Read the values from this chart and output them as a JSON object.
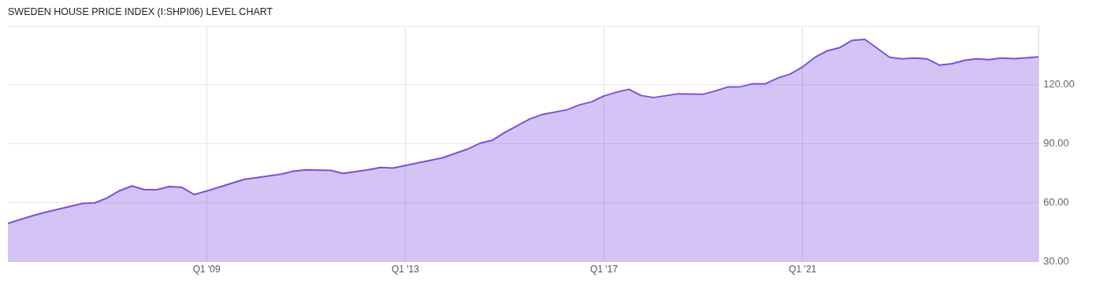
{
  "chart_data": {
    "type": "area",
    "title": "SWEDEN HOUSE PRICE INDEX (I:SHPI06) LEVEL CHART",
    "x": [
      "2005-01",
      "2005-07",
      "2005-10",
      "2006-07",
      "2006-10",
      "2007-01",
      "2007-04",
      "2007-07",
      "2007-10",
      "2008-01",
      "2008-04",
      "2008-07",
      "2008-10",
      "2009-01",
      "2009-10",
      "2010-07",
      "2010-10",
      "2011-01",
      "2011-07",
      "2011-10",
      "2012-04",
      "2012-07",
      "2012-10",
      "2013-01",
      "2013-10",
      "2014-04",
      "2014-07",
      "2014-10",
      "2015-01",
      "2015-07",
      "2015-10",
      "2016-04",
      "2016-07",
      "2016-10",
      "2017-01",
      "2017-04",
      "2017-07",
      "2017-10",
      "2018-01",
      "2018-07",
      "2019-01",
      "2019-04",
      "2019-07",
      "2019-10",
      "2020-01",
      "2020-04",
      "2020-07",
      "2020-10",
      "2021-01",
      "2021-04",
      "2021-07",
      "2021-10",
      "2022-01",
      "2022-04",
      "2022-07",
      "2022-10",
      "2023-01",
      "2023-04",
      "2023-07",
      "2023-10",
      "2024-01",
      "2024-04",
      "2024-07",
      "2024-10",
      "2025-01",
      "2025-04",
      "2025-07",
      "2025-10"
    ],
    "series": [
      {
        "color": "#7d4fe0",
        "values": [
          49.5,
          53.5,
          55.2,
          59.7,
          60.0,
          62.5,
          66.2,
          68.6,
          66.7,
          66.7,
          68.3,
          67.9,
          64.2,
          66.0,
          71.9,
          74.6,
          76.1,
          76.8,
          76.5,
          75.0,
          76.8,
          78.0,
          77.7,
          79.0,
          82.9,
          87.3,
          90.3,
          91.8,
          95.8,
          102.6,
          104.9,
          107.3,
          109.8,
          111.4,
          114.4,
          116.3,
          117.8,
          114.6,
          113.6,
          115.5,
          115.3,
          117.0,
          119.0,
          119.1,
          120.6,
          120.6,
          123.5,
          125.5,
          129.2,
          134.1,
          137.4,
          139.0,
          142.7,
          143.2,
          138.7,
          134.1,
          133.3,
          133.7,
          133.3,
          130.1,
          130.8,
          132.5,
          133.3,
          132.9,
          133.7,
          133.4,
          133.8,
          134.3
        ]
      }
    ],
    "xlim": [
      "2005-01",
      "2025-10"
    ],
    "xticks": [
      {
        "value": "2009-01",
        "label": "Q1 '09"
      },
      {
        "value": "2013-01",
        "label": "Q1 '13"
      },
      {
        "value": "2017-01",
        "label": "Q1 '17"
      },
      {
        "value": "2021-01",
        "label": "Q1 '21"
      }
    ],
    "ylim": [
      30,
      150
    ],
    "yticks": [
      {
        "value": 30,
        "label": "30.00"
      },
      {
        "value": 60,
        "label": "60.00"
      },
      {
        "value": 90,
        "label": "90.00"
      },
      {
        "value": 120,
        "label": "120.00"
      },
      {
        "value": 150,
        "label": null
      }
    ],
    "grid": true,
    "legend": false
  }
}
